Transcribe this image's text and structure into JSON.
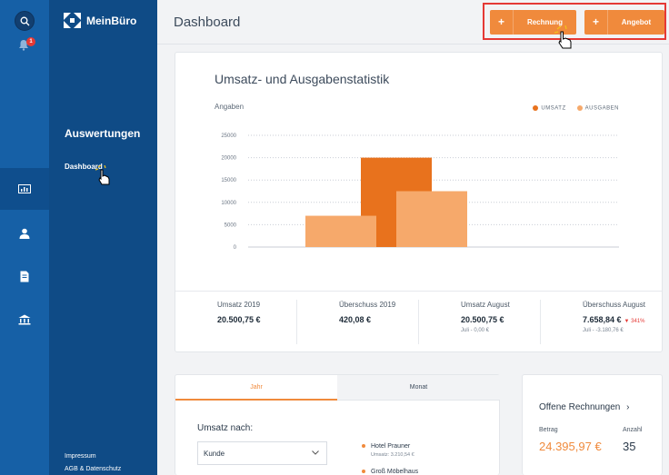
{
  "brand": {
    "name": "MeinBüro"
  },
  "rail": {
    "notification_count": "1"
  },
  "sidebar": {
    "section": "Auswertungen",
    "active_item": "Dashboard",
    "footer": [
      "Impressum",
      "AGB & Datenschutz"
    ]
  },
  "header": {
    "title": "Dashboard",
    "buttons": [
      {
        "plus": "+",
        "label": "Rechnung"
      },
      {
        "plus": "+",
        "label": "Angebot"
      }
    ]
  },
  "chart_card": {
    "title": "Umsatz- und Ausgabenstatistik",
    "legend": [
      {
        "label": "UMSATZ",
        "color": "#e8721d"
      },
      {
        "label": "AUSGABEN",
        "color": "#f6a96b"
      }
    ]
  },
  "chart_data": {
    "type": "bar",
    "ylabel": "Angaben",
    "ylim": [
      0,
      25000
    ],
    "yticks": [
      "25000",
      "20000",
      "15000",
      "10000",
      "5000",
      "0"
    ],
    "series": [
      {
        "name": "UMSATZ",
        "color": "#e8721d",
        "values": [
          20000
        ]
      },
      {
        "name": "AUSGABEN",
        "color": "#f6a96b",
        "values": [
          7000,
          12500
        ]
      }
    ],
    "grid": true,
    "legend_position": "top-right"
  },
  "stats": [
    {
      "label": "Umsatz 2019",
      "value": "20.500,75 €",
      "sub": "",
      "delta": ""
    },
    {
      "label": "Überschuss 2019",
      "value": "420,08 €",
      "sub": "",
      "delta": ""
    },
    {
      "label": "Umsatz August",
      "value": "20.500,75 €",
      "sub": "Juli - 0,00 €",
      "delta": ""
    },
    {
      "label": "Überschuss August",
      "value": "7.658,84 €",
      "sub": "Juli - -3.180,76 €",
      "delta": "▼ 341%"
    }
  ],
  "tabs": {
    "year": "Jahr",
    "month": "Monat"
  },
  "revenue": {
    "label": "Umsatz nach:",
    "select_value": "Kunde",
    "items": [
      {
        "name": "Hotel Prauner",
        "sub": "Umsatz: 3.210,54 €"
      },
      {
        "name": "Groß Möbelhaus",
        "sub": ""
      }
    ]
  },
  "open_invoices": {
    "title": "Offene Rechnungen",
    "amount_label": "Betrag",
    "count_label": "Anzahl",
    "amount": "24.395,97 €",
    "count": "35"
  }
}
